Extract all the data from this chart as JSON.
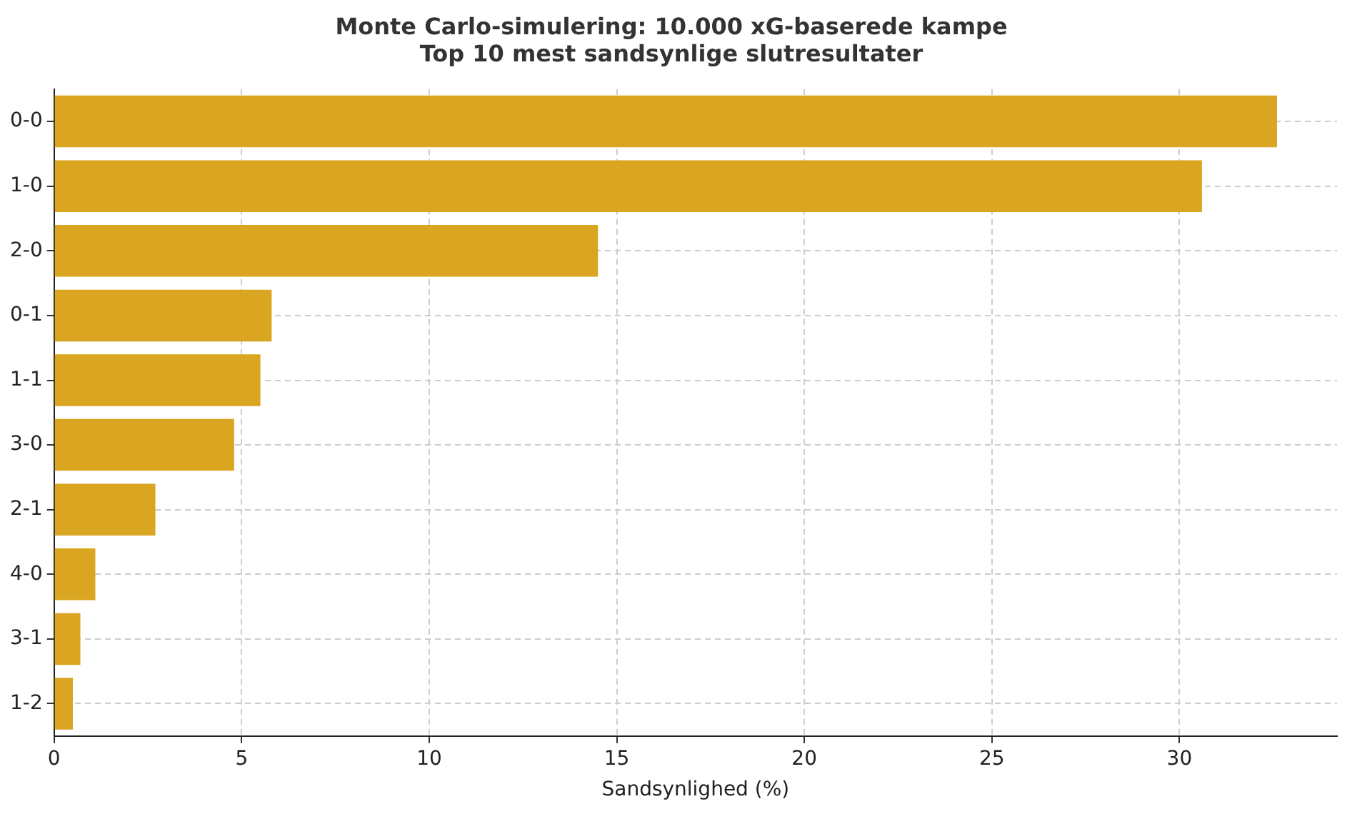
{
  "chart_data": {
    "type": "bar",
    "orientation": "horizontal",
    "title": "Monte Carlo-simulering: 10.000 xG-baserede kampe\nTop 10 mest sandsynlige slutresultater",
    "xlabel": "Sandsynlighed (%)",
    "categories": [
      "0-0",
      "1-0",
      "2-0",
      "0-1",
      "1-1",
      "3-0",
      "2-1",
      "4-0",
      "3-1",
      "1-2"
    ],
    "values": [
      32.6,
      30.6,
      14.5,
      5.8,
      5.5,
      4.8,
      2.7,
      1.1,
      0.7,
      0.5
    ],
    "color": "#daa520",
    "xlim": [
      0,
      34.2
    ],
    "xticks": [
      0,
      5,
      10,
      15,
      20,
      25,
      30
    ],
    "grid": true,
    "legend": false
  }
}
